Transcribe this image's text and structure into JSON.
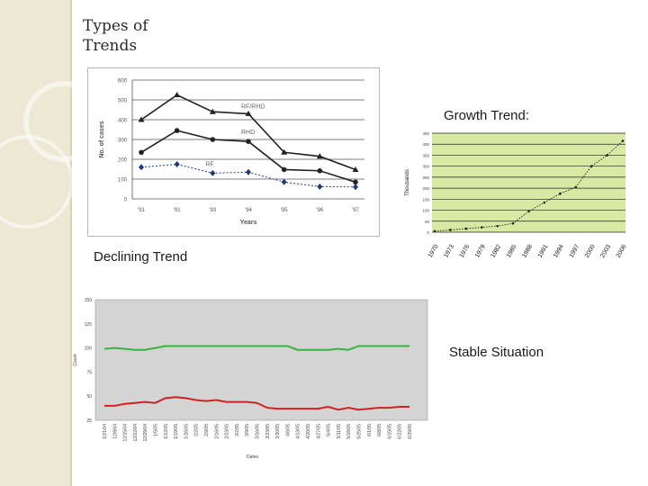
{
  "slide": {
    "title_line1": "Types of",
    "title_line2": "Trends",
    "colors": {
      "left_band": "#ece8d3",
      "accent_green": "#d7eaa3"
    }
  },
  "captions": {
    "declining": "Declining Trend",
    "growth": "Growth Trend:",
    "stable": "Stable Situation"
  },
  "chart_data": [
    {
      "id": "declining",
      "type": "line",
      "ylabel": "No. of cases",
      "xlabel": "Years",
      "ylim": [
        0,
        600
      ],
      "yticks": [
        "0",
        "100",
        "200",
        "300",
        "400",
        "500",
        "600"
      ],
      "categories": [
        "'91",
        "'91",
        "'93",
        "'94",
        "'95",
        "'96",
        "'97"
      ],
      "series": [
        {
          "name": "RF/RHD",
          "values": [
            400,
            525,
            440,
            430,
            235,
            215,
            148
          ],
          "color": "#222222",
          "marker": "triangle",
          "dashed": false
        },
        {
          "name": "RHD",
          "values": [
            235,
            345,
            300,
            290,
            148,
            142,
            85
          ],
          "color": "#222222",
          "marker": "circle",
          "dashed": false
        },
        {
          "name": "RF",
          "values": [
            160,
            175,
            130,
            135,
            85,
            62,
            60
          ],
          "color": "#1f3a7a",
          "marker": "diamond",
          "dashed": true
        }
      ],
      "grid": true,
      "background": "#ffffff"
    },
    {
      "id": "growth",
      "type": "line",
      "ylabel": "Thousands",
      "yticks": [
        "0",
        "50",
        "100",
        "150",
        "200",
        "250",
        "300",
        "350",
        "400",
        "450"
      ],
      "ylim": [
        0,
        450
      ],
      "categories": [
        "1970",
        "1973",
        "1976",
        "1979",
        "1982",
        "1985",
        "1988",
        "1991",
        "1994",
        "1997",
        "2000",
        "2003",
        "2006"
      ],
      "values": [
        5,
        10,
        16,
        22,
        28,
        40,
        95,
        135,
        175,
        205,
        300,
        350,
        415
      ],
      "grid": true,
      "background": "#d7eaa3",
      "line_color": "#222222"
    },
    {
      "id": "stable",
      "type": "line",
      "xlabel": "Dates",
      "ylabel": "Count",
      "yticks": [
        "25",
        "50",
        "75",
        "100",
        "125",
        "150"
      ],
      "ylim": [
        25,
        150
      ],
      "categories": [
        "12/1/04",
        "12/8/04",
        "12/15/04",
        "12/22/04",
        "12/29/04",
        "1/5/05",
        "1/12/05",
        "1/19/05",
        "1/26/05",
        "2/2/05",
        "2/9/05",
        "2/16/05",
        "2/23/05",
        "3/2/05",
        "3/9/05",
        "3/16/05",
        "3/23/05",
        "3/30/05",
        "4/6/05",
        "4/13/05",
        "4/20/05",
        "4/27/05",
        "5/4/05",
        "5/11/05",
        "5/18/05",
        "5/25/05",
        "6/1/05",
        "6/8/05",
        "6/15/05",
        "6/22/05",
        "6/29/05"
      ],
      "series": [
        {
          "name": "",
          "color": "#3cb043",
          "values": [
            99,
            100,
            99,
            98,
            98,
            100,
            102,
            102,
            102,
            102,
            102,
            102,
            102,
            102,
            102,
            102,
            102,
            102,
            102,
            98,
            98,
            98,
            98,
            99,
            98,
            102,
            102,
            102,
            102,
            102,
            102
          ]
        },
        {
          "name": "",
          "color": "#d42020",
          "values": [
            40,
            40,
            42,
            43,
            44,
            43,
            48,
            49,
            48,
            46,
            45,
            46,
            44,
            44,
            44,
            43,
            38,
            37,
            37,
            37,
            37,
            37,
            39,
            36,
            38,
            36,
            37,
            38,
            38,
            39,
            39
          ]
        }
      ],
      "grid": false,
      "background": "#d4d4d4"
    }
  ]
}
